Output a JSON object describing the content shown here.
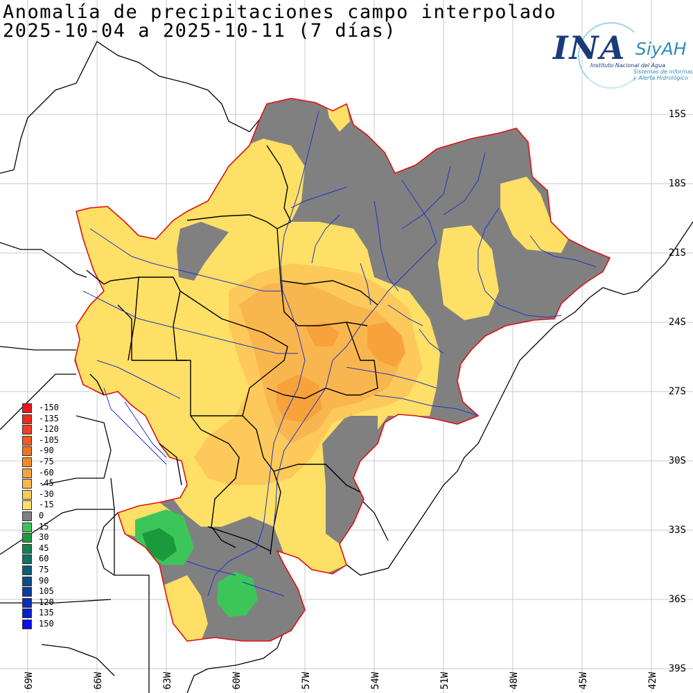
{
  "title_line1": "Anomalía de precipitaciones campo interpolado",
  "title_line2": "2025-10-04 a 2025-10-11 (7 días)",
  "logo": {
    "ina": "INA",
    "siyah": "SiyAH",
    "org": "Instituto Nacional del Agua",
    "system_line1": "Sistemas de información",
    "system_line2": "y Alerta Hidrológico"
  },
  "lat_labels": [
    {
      "value": -15,
      "label": "15S"
    },
    {
      "value": -18,
      "label": "18S"
    },
    {
      "value": -21,
      "label": "21S"
    },
    {
      "value": -24,
      "label": "24S"
    },
    {
      "value": -27,
      "label": "27S"
    },
    {
      "value": -30,
      "label": "30S"
    },
    {
      "value": -33,
      "label": "33S"
    },
    {
      "value": -36,
      "label": "36S"
    },
    {
      "value": -39,
      "label": "39S"
    }
  ],
  "lon_labels": [
    {
      "value": -69,
      "label": "69W"
    },
    {
      "value": -66,
      "label": "66W"
    },
    {
      "value": -63,
      "label": "63W"
    },
    {
      "value": -60,
      "label": "60W"
    },
    {
      "value": -57,
      "label": "57W"
    },
    {
      "value": -54,
      "label": "54W"
    },
    {
      "value": -51,
      "label": "51W"
    },
    {
      "value": -48,
      "label": "48W"
    },
    {
      "value": -45,
      "label": "45W"
    },
    {
      "value": -42,
      "label": "42W"
    }
  ],
  "legend": [
    {
      "label": "-150",
      "color": "#e8171c"
    },
    {
      "label": "-135",
      "color": "#ec2a1e"
    },
    {
      "label": "-120",
      "color": "#ef3e20"
    },
    {
      "label": "-105",
      "color": "#f15a22"
    },
    {
      "label": "-90",
      "color": "#f47421"
    },
    {
      "label": "-75",
      "color": "#f68c24"
    },
    {
      "label": "-60",
      "color": "#f8a23c"
    },
    {
      "label": "-45",
      "color": "#fab64e"
    },
    {
      "label": "-30",
      "color": "#fcc95a"
    },
    {
      "label": "-15",
      "color": "#fee066"
    },
    {
      "label": "0",
      "color": "#808080"
    },
    {
      "label": "15",
      "color": "#3cc65a"
    },
    {
      "label": "30",
      "color": "#1a9a3c"
    },
    {
      "label": "45",
      "color": "#128254"
    },
    {
      "label": "60",
      "color": "#0e7266"
    },
    {
      "label": "75",
      "color": "#0c5f72"
    },
    {
      "label": "90",
      "color": "#0b4d86"
    },
    {
      "label": "105",
      "color": "#0a3d9c"
    },
    {
      "label": "120",
      "color": "#0a2eb8"
    },
    {
      "label": "135",
      "color": "#0a20cf"
    },
    {
      "label": "150",
      "color": "#0a10e6"
    }
  ],
  "colors": {
    "basin_outline": "#e01010",
    "rivers": "#1f33c8",
    "borders": "#000000",
    "grid": "#c8c8c8",
    "neutral": "#808080",
    "light_yellow": "#fee066",
    "yellow_orange": "#fcc95a",
    "orange": "#fab64e",
    "dark_orange": "#f8a23c",
    "light_green": "#3cc65a",
    "dark_green": "#1a9a3c"
  }
}
